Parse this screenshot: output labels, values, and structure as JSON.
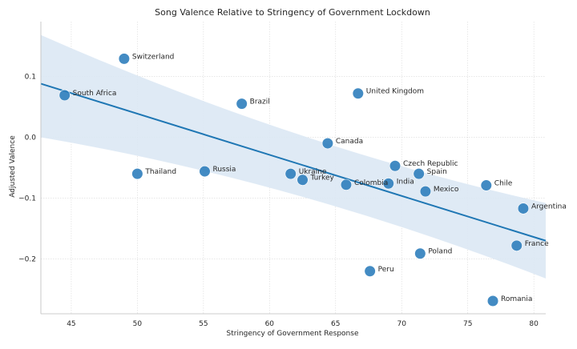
{
  "chart_data": {
    "type": "scatter",
    "title": "Song Valence Relative to Stringency of Government Lockdown",
    "xlabel": "Stringency of Government Response",
    "ylabel": "Adjusted Valence",
    "xlim": [
      42.7,
      80.9
    ],
    "ylim": [
      -0.29,
      0.19
    ],
    "xticks": [
      45,
      50,
      55,
      60,
      65,
      70,
      75,
      80
    ],
    "yticks": [
      -0.2,
      -0.1,
      0.0,
      0.1
    ],
    "xtick_labels": [
      "45",
      "50",
      "55",
      "60",
      "65",
      "70",
      "75",
      "80"
    ],
    "ytick_labels": [
      "−0.2",
      "−0.1",
      "0.0",
      "0.1"
    ],
    "grid": true,
    "colors": {
      "point": "#2f7ebc",
      "line": "#1f77b4",
      "band": "#dce8f4",
      "grid": "#d9d9d9",
      "axis": "#bdbdbd"
    },
    "points": [
      {
        "label": "Switzerland",
        "x": 49.0,
        "y": 0.129
      },
      {
        "label": "South Africa",
        "x": 44.5,
        "y": 0.069
      },
      {
        "label": "Brazil",
        "x": 57.9,
        "y": 0.055
      },
      {
        "label": "United Kingdom",
        "x": 66.7,
        "y": 0.072
      },
      {
        "label": "Canada",
        "x": 64.4,
        "y": -0.01
      },
      {
        "label": "Czech Republic",
        "x": 69.5,
        "y": -0.047
      },
      {
        "label": "Spain",
        "x": 71.3,
        "y": -0.06
      },
      {
        "label": "Thailand",
        "x": 50.0,
        "y": -0.06
      },
      {
        "label": "Russia",
        "x": 55.1,
        "y": -0.056
      },
      {
        "label": "Ukraine",
        "x": 61.6,
        "y": -0.06
      },
      {
        "label": "Turkey",
        "x": 62.5,
        "y": -0.07
      },
      {
        "label": "Colombia",
        "x": 65.8,
        "y": -0.078
      },
      {
        "label": "India",
        "x": 69.0,
        "y": -0.076
      },
      {
        "label": "Mexico",
        "x": 71.8,
        "y": -0.089
      },
      {
        "label": "Chile",
        "x": 76.4,
        "y": -0.079
      },
      {
        "label": "Argentina",
        "x": 79.2,
        "y": -0.117
      },
      {
        "label": "France",
        "x": 78.7,
        "y": -0.178
      },
      {
        "label": "Poland",
        "x": 71.4,
        "y": -0.191
      },
      {
        "label": "Peru",
        "x": 67.6,
        "y": -0.22
      },
      {
        "label": "Romania",
        "x": 76.9,
        "y": -0.269
      }
    ],
    "regression": {
      "x": [
        42.7,
        80.9
      ],
      "y": [
        0.088,
        -0.17
      ],
      "ci_upper": [
        0.168,
        -0.108
      ],
      "ci_lower": [
        0.0,
        -0.232
      ]
    }
  }
}
